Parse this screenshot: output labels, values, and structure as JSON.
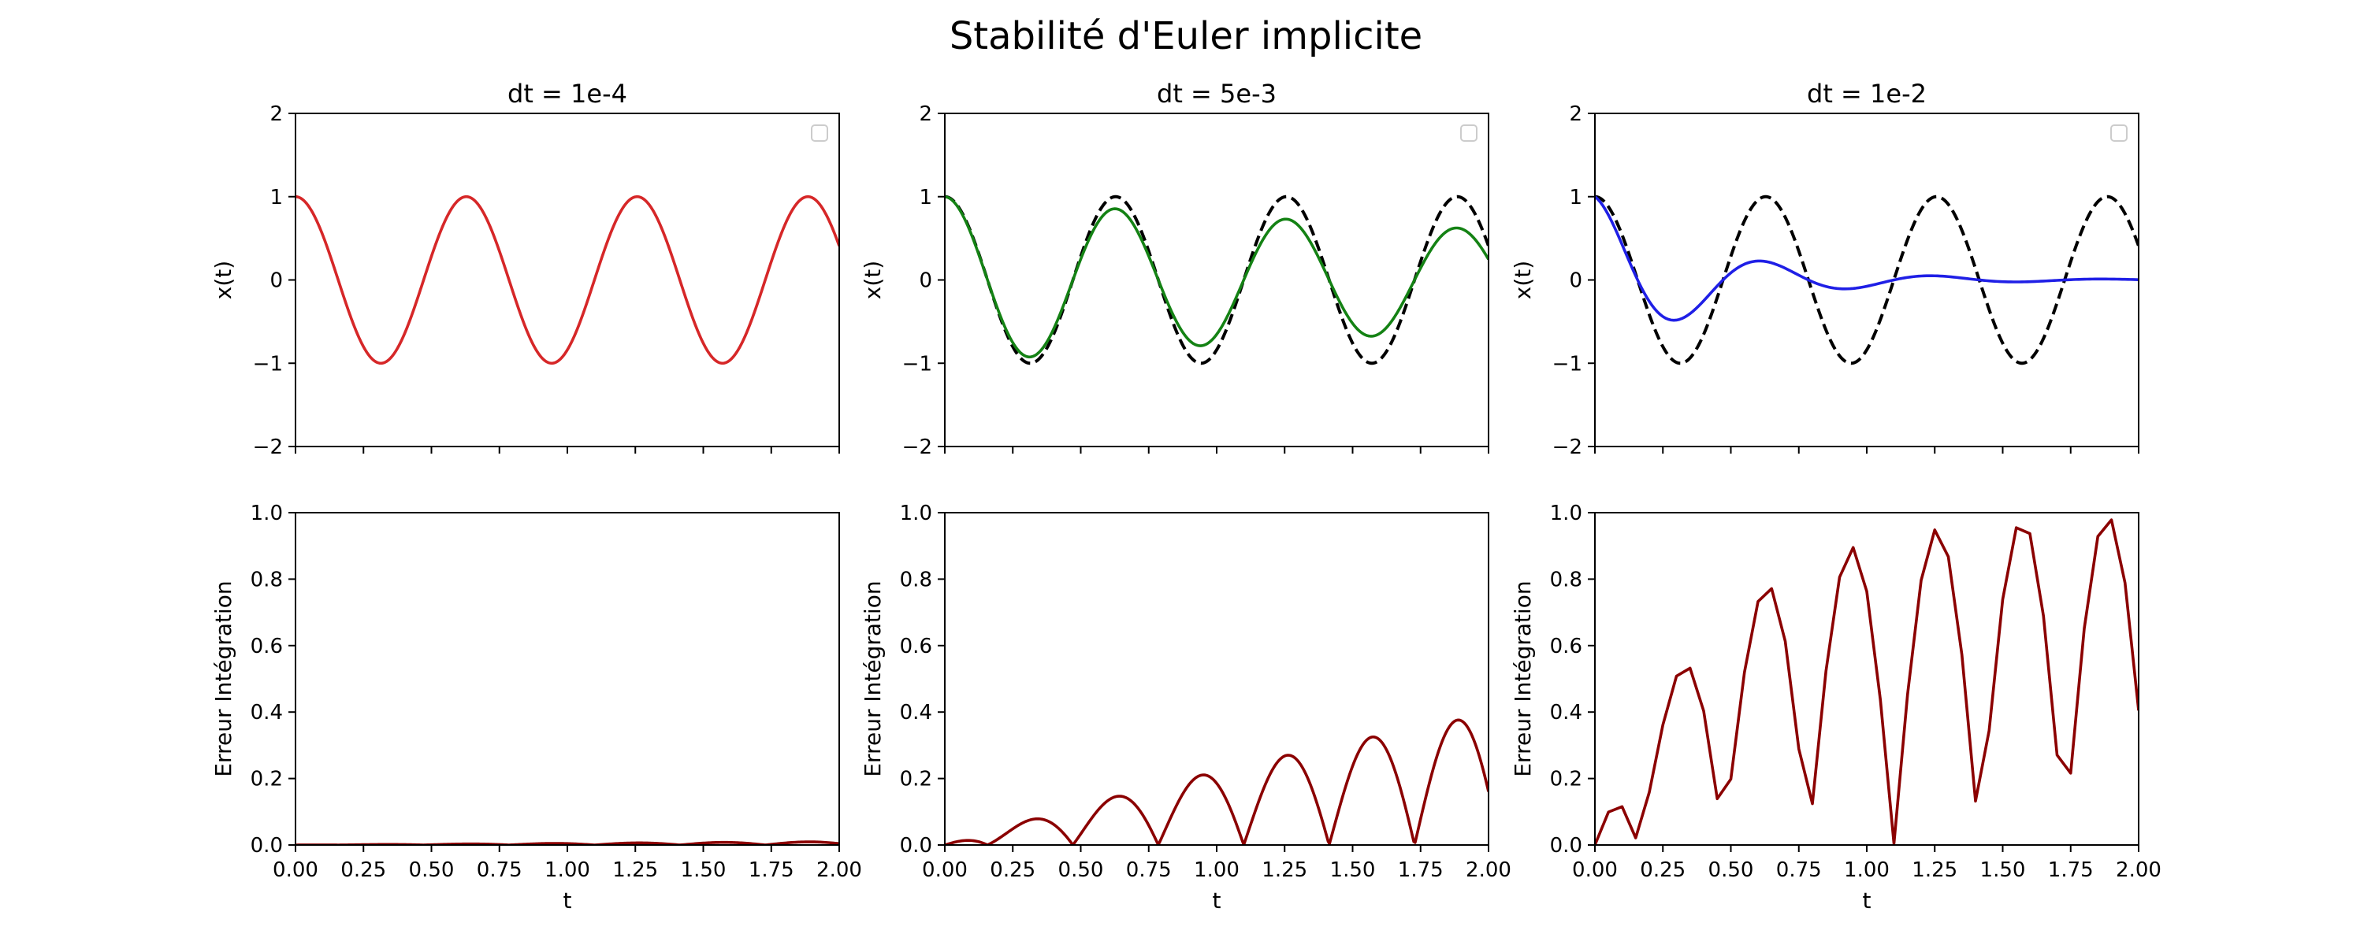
{
  "figure": {
    "suptitle": "Stabilité d'Euler implicite"
  },
  "chart_data": [
    {
      "type": "line",
      "title": "dt = 1e-4",
      "xlabel": "",
      "ylabel": "x(t)",
      "xlim": [
        0,
        2
      ],
      "ylim": [
        -2,
        2
      ],
      "yticks": [
        -2,
        -1,
        0,
        1,
        2
      ],
      "ytick_labels": [
        "−2",
        "−1",
        "0",
        "1",
        "2"
      ],
      "xticks": [
        0,
        0.25,
        0.5,
        0.75,
        1.0,
        1.25,
        1.5,
        1.75,
        2.0
      ],
      "xtick_labels": [],
      "legend": {
        "placement": "top-right",
        "entries": []
      },
      "series": [
        {
          "color": "#d62728",
          "style": "solid",
          "generator": "damped_cos",
          "omega": 10,
          "decay": 0,
          "dt": 0.002
        }
      ]
    },
    {
      "type": "line",
      "title": "dt = 5e-3",
      "xlabel": "",
      "ylabel": "x(t)",
      "xlim": [
        0,
        2
      ],
      "ylim": [
        -2,
        2
      ],
      "yticks": [
        -2,
        -1,
        0,
        1,
        2
      ],
      "ytick_labels": [
        "−2",
        "−1",
        "0",
        "1",
        "2"
      ],
      "xticks": [
        0,
        0.25,
        0.5,
        0.75,
        1.0,
        1.25,
        1.5,
        1.75,
        2.0
      ],
      "xtick_labels": [],
      "legend": {
        "placement": "top-right",
        "entries": []
      },
      "series": [
        {
          "color": "#000000",
          "style": "dashed",
          "generator": "damped_cos",
          "omega": 10,
          "decay": 0,
          "dt": 0.002
        },
        {
          "color": "#148214",
          "style": "solid",
          "generator": "damped_cos",
          "omega": 10,
          "decay": 0.25,
          "dt": 0.005
        }
      ]
    },
    {
      "type": "line",
      "title": "dt = 1e-2",
      "xlabel": "",
      "ylabel": "x(t)",
      "xlim": [
        0,
        2
      ],
      "ylim": [
        -2,
        2
      ],
      "yticks": [
        -2,
        -1,
        0,
        1,
        2
      ],
      "ytick_labels": [
        "−2",
        "−1",
        "0",
        "1",
        "2"
      ],
      "xticks": [
        0,
        0.25,
        0.5,
        0.75,
        1.0,
        1.25,
        1.5,
        1.75,
        2.0
      ],
      "xtick_labels": [],
      "legend": {
        "placement": "top-right",
        "entries": []
      },
      "series": [
        {
          "color": "#000000",
          "style": "dashed",
          "generator": "damped_cos",
          "omega": 10,
          "decay": 0,
          "dt": 0.002
        },
        {
          "color": "#1f1fe6",
          "style": "solid",
          "generator": "damped_cos",
          "omega": 10,
          "decay": 2.4,
          "dt": 0.01
        }
      ]
    },
    {
      "type": "line",
      "title": "",
      "xlabel": "t",
      "ylabel": "Erreur Intégration",
      "xlim": [
        0,
        2
      ],
      "ylim": [
        0,
        1
      ],
      "yticks": [
        0,
        0.2,
        0.4,
        0.6,
        0.8,
        1.0
      ],
      "ytick_labels": [
        "0.0",
        "0.2",
        "0.4",
        "0.6",
        "0.8",
        "1.0"
      ],
      "xticks": [
        0,
        0.25,
        0.5,
        0.75,
        1.0,
        1.25,
        1.5,
        1.75,
        2.0
      ],
      "xtick_labels": [
        "0.00",
        "0.25",
        "0.50",
        "0.75",
        "1.00",
        "1.25",
        "1.50",
        "1.75",
        "2.00"
      ],
      "series": [
        {
          "color": "#8b0000",
          "style": "solid",
          "generator": "abs_error",
          "omega": 10,
          "decay": 0.005,
          "dt": 0.005
        }
      ]
    },
    {
      "type": "line",
      "title": "",
      "xlabel": "t",
      "ylabel": "Erreur Intégration",
      "xlim": [
        0,
        2
      ],
      "ylim": [
        0,
        1
      ],
      "yticks": [
        0,
        0.2,
        0.4,
        0.6,
        0.8,
        1.0
      ],
      "ytick_labels": [
        "0.0",
        "0.2",
        "0.4",
        "0.6",
        "0.8",
        "1.0"
      ],
      "xticks": [
        0,
        0.25,
        0.5,
        0.75,
        1.0,
        1.25,
        1.5,
        1.75,
        2.0
      ],
      "xtick_labels": [
        "0.00",
        "0.25",
        "0.50",
        "0.75",
        "1.00",
        "1.25",
        "1.50",
        "1.75",
        "2.00"
      ],
      "series": [
        {
          "color": "#8b0000",
          "style": "solid",
          "generator": "abs_error",
          "omega": 10,
          "decay": 0.25,
          "dt": 0.005
        }
      ]
    },
    {
      "type": "line",
      "title": "",
      "xlabel": "t",
      "ylabel": "Erreur Intégration",
      "xlim": [
        0,
        2
      ],
      "ylim": [
        0,
        1
      ],
      "yticks": [
        0,
        0.2,
        0.4,
        0.6,
        0.8,
        1.0
      ],
      "ytick_labels": [
        "0.0",
        "0.2",
        "0.4",
        "0.6",
        "0.8",
        "1.0"
      ],
      "xticks": [
        0,
        0.25,
        0.5,
        0.75,
        1.0,
        1.25,
        1.5,
        1.75,
        2.0
      ],
      "xtick_labels": [
        "0.00",
        "0.25",
        "0.50",
        "0.75",
        "1.00",
        "1.25",
        "1.50",
        "1.75",
        "2.00"
      ],
      "series": [
        {
          "color": "#8b0000",
          "style": "solid",
          "generator": "abs_error",
          "omega": 10,
          "decay": 2.4,
          "dt": 0.05
        }
      ]
    }
  ]
}
